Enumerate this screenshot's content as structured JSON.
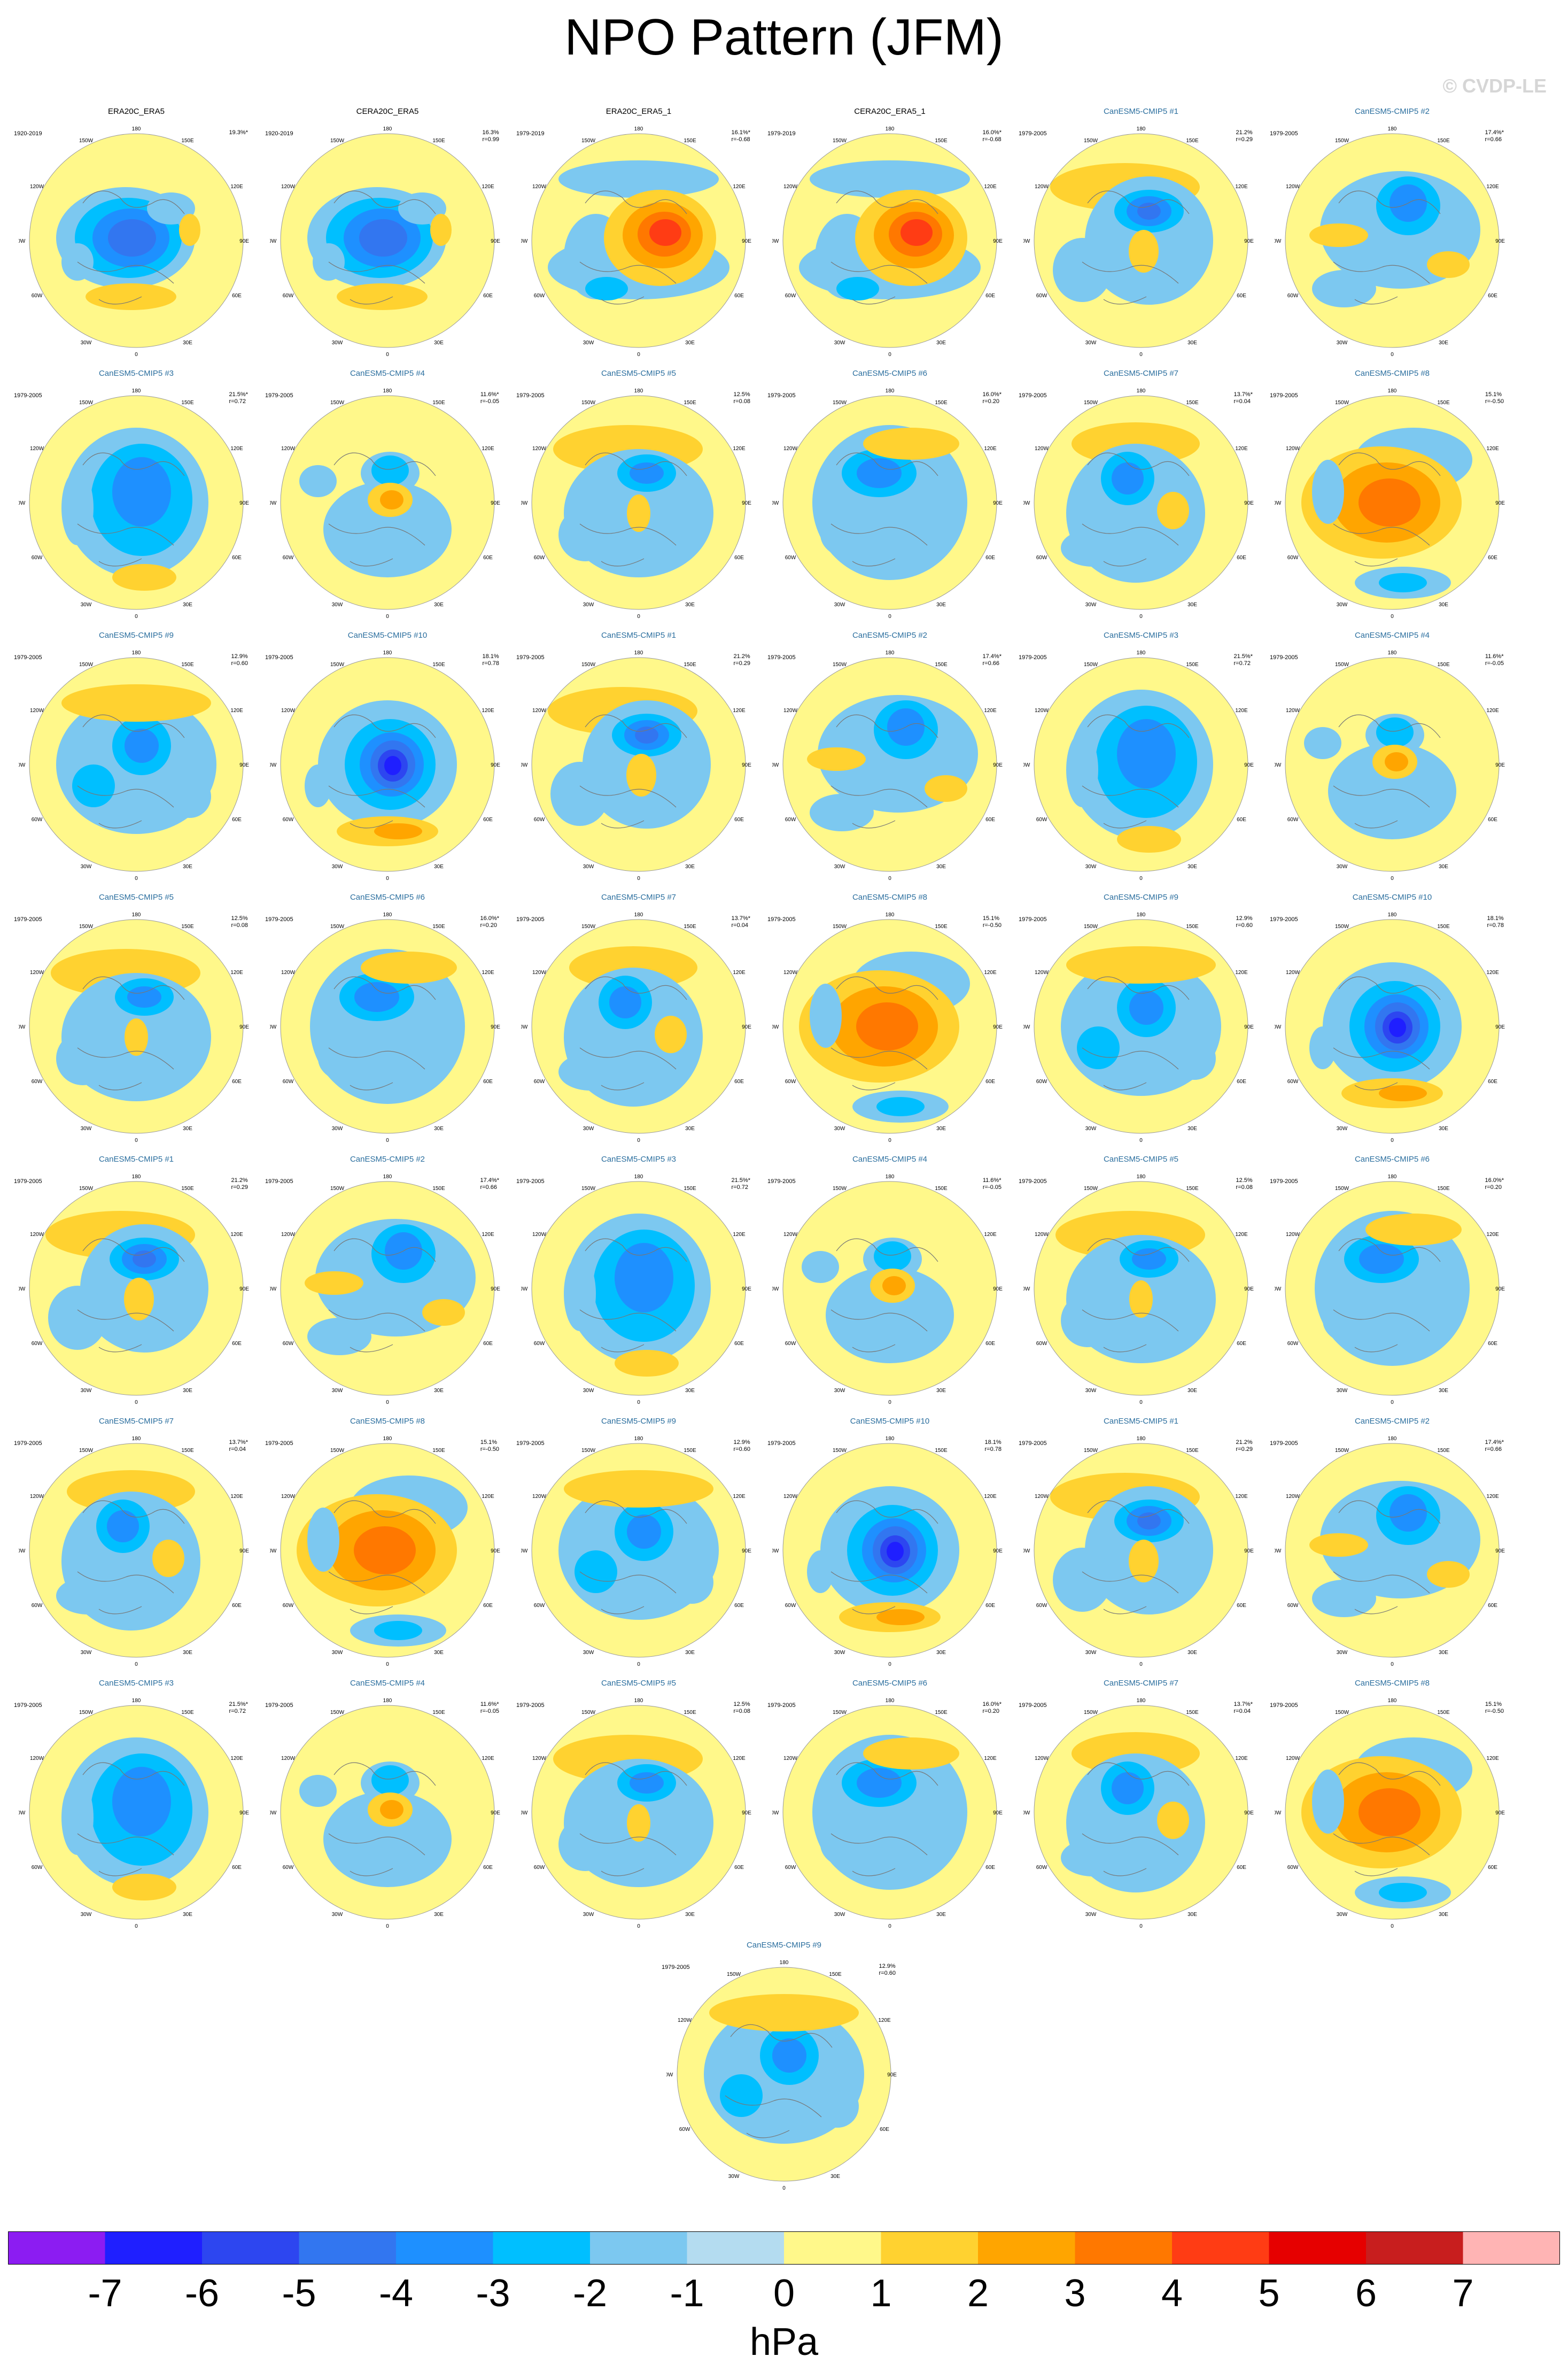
{
  "title": "NPO Pattern (JFM)",
  "watermark": "© CVDP-LE",
  "units": "hPa",
  "colorbar": {
    "tick_labels": [
      "-7",
      "-6",
      "-5",
      "-4",
      "-3",
      "-2",
      "-1",
      "0",
      "1",
      "2",
      "3",
      "4",
      "5",
      "6",
      "7"
    ],
    "colors": [
      "#8c1cf2",
      "#1f1fff",
      "#2d46f0",
      "#3276f0",
      "#1e90ff",
      "#00bfff",
      "#7cc8f0",
      "#b4dcf0",
      "#fff88a",
      "#ffd230",
      "#ffa500",
      "#ff7800",
      "#ff3c14",
      "#e60000",
      "#c81e1e",
      "#ffb4b4"
    ]
  },
  "panel_ticks": {
    "top": "180",
    "top_left": "150W",
    "top_right": "150E",
    "left_upper": "120W",
    "right_upper": "120E",
    "left": "90W",
    "right": "90E",
    "left_lower": "60W",
    "right_lower": "60E",
    "bottom_left": "30W",
    "bottom_right": "30E",
    "bottom": "0"
  },
  "panels": [
    {
      "title": "ERA20C_ERA5",
      "kind": "obs",
      "years": "1920-2019",
      "pct": "19.3%*",
      "r": "",
      "pattern": "A"
    },
    {
      "title": "CERA20C_ERA5",
      "kind": "obs",
      "years": "1920-2019",
      "pct": "16.3%",
      "r": "r=0.99",
      "pattern": "A"
    },
    {
      "title": "ERA20C_ERA5_1",
      "kind": "obs",
      "years": "1979-2019",
      "pct": "16.1%*",
      "r": "r=-0.68",
      "pattern": "B"
    },
    {
      "title": "CERA20C_ERA5_1",
      "kind": "obs",
      "years": "1979-2019",
      "pct": "16.0%*",
      "r": "r=-0.68",
      "pattern": "B"
    },
    {
      "title": "CanESM5-CMIP5 #1",
      "kind": "model",
      "years": "1979-2005",
      "pct": "21.2%",
      "r": "r=0.29",
      "pattern": "C"
    },
    {
      "title": "CanESM5-CMIP5 #2",
      "kind": "model",
      "years": "1979-2005",
      "pct": "17.4%*",
      "r": "r=0.66",
      "pattern": "D"
    },
    {
      "title": "CanESM5-CMIP5 #3",
      "kind": "model",
      "years": "1979-2005",
      "pct": "21.5%*",
      "r": "r=0.72",
      "pattern": "E"
    },
    {
      "title": "CanESM5-CMIP5 #4",
      "kind": "model",
      "years": "1979-2005",
      "pct": "11.6%*",
      "r": "r=-0.05",
      "pattern": "F"
    },
    {
      "title": "CanESM5-CMIP5 #5",
      "kind": "model",
      "years": "1979-2005",
      "pct": "12.5%",
      "r": "r=0.08",
      "pattern": "G"
    },
    {
      "title": "CanESM5-CMIP5 #6",
      "kind": "model",
      "years": "1979-2005",
      "pct": "16.0%*",
      "r": "r=0.20",
      "pattern": "H"
    },
    {
      "title": "CanESM5-CMIP5 #7",
      "kind": "model",
      "years": "1979-2005",
      "pct": "13.7%*",
      "r": "r=0.04",
      "pattern": "I"
    },
    {
      "title": "CanESM5-CMIP5 #8",
      "kind": "model",
      "years": "1979-2005",
      "pct": "15.1%",
      "r": "r=-0.50",
      "pattern": "J"
    },
    {
      "title": "CanESM5-CMIP5 #9",
      "kind": "model",
      "years": "1979-2005",
      "pct": "12.9%",
      "r": "r=0.60",
      "pattern": "K"
    },
    {
      "title": "CanESM5-CMIP5 #10",
      "kind": "model",
      "years": "1979-2005",
      "pct": "18.1%",
      "r": "r=0.78",
      "pattern": "L"
    },
    {
      "title": "CanESM5-CMIP5 #1",
      "kind": "model",
      "years": "1979-2005",
      "pct": "21.2%",
      "r": "r=0.29",
      "pattern": "C"
    },
    {
      "title": "CanESM5-CMIP5 #2",
      "kind": "model",
      "years": "1979-2005",
      "pct": "17.4%*",
      "r": "r=0.66",
      "pattern": "D"
    },
    {
      "title": "CanESM5-CMIP5 #3",
      "kind": "model",
      "years": "1979-2005",
      "pct": "21.5%*",
      "r": "r=0.72",
      "pattern": "E"
    },
    {
      "title": "CanESM5-CMIP5 #4",
      "kind": "model",
      "years": "1979-2005",
      "pct": "11.6%*",
      "r": "r=-0.05",
      "pattern": "F"
    },
    {
      "title": "CanESM5-CMIP5 #5",
      "kind": "model",
      "years": "1979-2005",
      "pct": "12.5%",
      "r": "r=0.08",
      "pattern": "G"
    },
    {
      "title": "CanESM5-CMIP5 #6",
      "kind": "model",
      "years": "1979-2005",
      "pct": "16.0%*",
      "r": "r=0.20",
      "pattern": "H"
    },
    {
      "title": "CanESM5-CMIP5 #7",
      "kind": "model",
      "years": "1979-2005",
      "pct": "13.7%*",
      "r": "r=0.04",
      "pattern": "I"
    },
    {
      "title": "CanESM5-CMIP5 #8",
      "kind": "model",
      "years": "1979-2005",
      "pct": "15.1%",
      "r": "r=-0.50",
      "pattern": "J"
    },
    {
      "title": "CanESM5-CMIP5 #9",
      "kind": "model",
      "years": "1979-2005",
      "pct": "12.9%",
      "r": "r=0.60",
      "pattern": "K"
    },
    {
      "title": "CanESM5-CMIP5 #10",
      "kind": "model",
      "years": "1979-2005",
      "pct": "18.1%",
      "r": "r=0.78",
      "pattern": "L"
    },
    {
      "title": "CanESM5-CMIP5 #1",
      "kind": "model",
      "years": "1979-2005",
      "pct": "21.2%",
      "r": "r=0.29",
      "pattern": "C"
    },
    {
      "title": "CanESM5-CMIP5 #2",
      "kind": "model",
      "years": "1979-2005",
      "pct": "17.4%*",
      "r": "r=0.66",
      "pattern": "D"
    },
    {
      "title": "CanESM5-CMIP5 #3",
      "kind": "model",
      "years": "1979-2005",
      "pct": "21.5%*",
      "r": "r=0.72",
      "pattern": "E"
    },
    {
      "title": "CanESM5-CMIP5 #4",
      "kind": "model",
      "years": "1979-2005",
      "pct": "11.6%*",
      "r": "r=-0.05",
      "pattern": "F"
    },
    {
      "title": "CanESM5-CMIP5 #5",
      "kind": "model",
      "years": "1979-2005",
      "pct": "12.5%",
      "r": "r=0.08",
      "pattern": "G"
    },
    {
      "title": "CanESM5-CMIP5 #6",
      "kind": "model",
      "years": "1979-2005",
      "pct": "16.0%*",
      "r": "r=0.20",
      "pattern": "H"
    },
    {
      "title": "CanESM5-CMIP5 #7",
      "kind": "model",
      "years": "1979-2005",
      "pct": "13.7%*",
      "r": "r=0.04",
      "pattern": "I"
    },
    {
      "title": "CanESM5-CMIP5 #8",
      "kind": "model",
      "years": "1979-2005",
      "pct": "15.1%",
      "r": "r=-0.50",
      "pattern": "J"
    },
    {
      "title": "CanESM5-CMIP5 #9",
      "kind": "model",
      "years": "1979-2005",
      "pct": "12.9%",
      "r": "r=0.60",
      "pattern": "K"
    },
    {
      "title": "CanESM5-CMIP5 #10",
      "kind": "model",
      "years": "1979-2005",
      "pct": "18.1%",
      "r": "r=0.78",
      "pattern": "L"
    },
    {
      "title": "CanESM5-CMIP5 #1",
      "kind": "model",
      "years": "1979-2005",
      "pct": "21.2%",
      "r": "r=0.29",
      "pattern": "C"
    },
    {
      "title": "CanESM5-CMIP5 #2",
      "kind": "model",
      "years": "1979-2005",
      "pct": "17.4%*",
      "r": "r=0.66",
      "pattern": "D"
    },
    {
      "title": "CanESM5-CMIP5 #3",
      "kind": "model",
      "years": "1979-2005",
      "pct": "21.5%*",
      "r": "r=0.72",
      "pattern": "E"
    },
    {
      "title": "CanESM5-CMIP5 #4",
      "kind": "model",
      "years": "1979-2005",
      "pct": "11.6%*",
      "r": "r=-0.05",
      "pattern": "F"
    },
    {
      "title": "CanESM5-CMIP5 #5",
      "kind": "model",
      "years": "1979-2005",
      "pct": "12.5%",
      "r": "r=0.08",
      "pattern": "G"
    },
    {
      "title": "CanESM5-CMIP5 #6",
      "kind": "model",
      "years": "1979-2005",
      "pct": "16.0%*",
      "r": "r=0.20",
      "pattern": "H"
    },
    {
      "title": "CanESM5-CMIP5 #7",
      "kind": "model",
      "years": "1979-2005",
      "pct": "13.7%*",
      "r": "r=0.04",
      "pattern": "I"
    },
    {
      "title": "CanESM5-CMIP5 #8",
      "kind": "model",
      "years": "1979-2005",
      "pct": "15.1%",
      "r": "r=-0.50",
      "pattern": "J"
    },
    {
      "title": "CanESM5-CMIP5 #9",
      "kind": "model",
      "years": "1979-2005",
      "pct": "12.9%",
      "r": "r=0.60",
      "pattern": "K"
    }
  ]
}
